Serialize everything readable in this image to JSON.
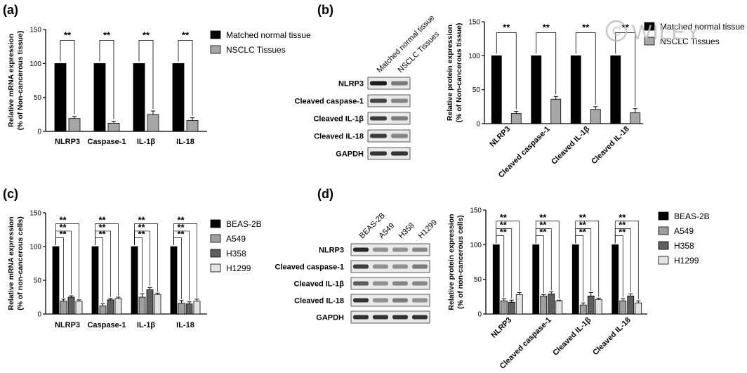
{
  "panels": [
    {
      "id": "a",
      "label": "(a)"
    },
    {
      "id": "b",
      "label": "(b)"
    },
    {
      "id": "c",
      "label": "(c)"
    },
    {
      "id": "d",
      "label": "(d)"
    }
  ],
  "watermark": {
    "symbol": "©",
    "text": "WILEY"
  },
  "sig_label": "**",
  "blots": [
    {
      "panel": "b",
      "lanes": [
        "Matched normal tissue",
        "NSCLC Tissues"
      ],
      "rows": [
        "NLRP3",
        "Cleaved caspase-1",
        "Cleaved IL-1β",
        "Cleaved IL-18",
        "GAPDH"
      ],
      "intensity": [
        [
          1.0,
          0.55
        ],
        [
          0.8,
          0.5
        ],
        [
          0.85,
          0.55
        ],
        [
          0.85,
          0.5
        ],
        [
          0.9,
          0.9
        ]
      ]
    },
    {
      "panel": "d",
      "lanes": [
        "BEAS-2B",
        "A549",
        "H358",
        "H1299"
      ],
      "rows": [
        "NLRP3",
        "Cleaved caspase-1",
        "Cleaved IL-1β",
        "Cleaved IL-18",
        "GAPDH"
      ],
      "intensity": [
        [
          0.95,
          0.45,
          0.45,
          0.5
        ],
        [
          0.85,
          0.45,
          0.45,
          0.55
        ],
        [
          0.7,
          0.45,
          0.5,
          0.5
        ],
        [
          0.9,
          0.45,
          0.55,
          0.45
        ],
        [
          0.9,
          0.9,
          0.9,
          0.9
        ]
      ]
    }
  ],
  "chart_data": [
    {
      "panel": "a",
      "type": "bar",
      "ylabel": "Relative mRNA expression\n(% of Non-cancerous tissue)",
      "ylim": [
        0,
        150
      ],
      "yticks": [
        0,
        50,
        100,
        150
      ],
      "categories": [
        "NLRP3",
        "Caspase-1",
        "IL-1β",
        "IL-18"
      ],
      "rotate_categories": false,
      "legend_position": "right",
      "series": [
        {
          "name": "Matched normal tissue",
          "color": "#000000",
          "values": [
            100,
            100,
            100,
            100
          ],
          "errors": [
            0,
            0,
            0,
            0
          ]
        },
        {
          "name": "NSCLC Tissues",
          "color": "#a6a6a6",
          "values": [
            19,
            12,
            25,
            16
          ],
          "errors": [
            3,
            3,
            5,
            4
          ]
        }
      ],
      "significance": [
        "**",
        "**",
        "**",
        "**"
      ]
    },
    {
      "panel": "b",
      "type": "bar",
      "ylabel": "Relative protein expression\n(% of Non-cancerous tissue)",
      "ylim": [
        0,
        150
      ],
      "yticks": [
        0,
        50,
        100,
        150
      ],
      "categories": [
        "NLRP3",
        "Cleaved caspase-1",
        "Cleaved IL-1β",
        "Cleaved IL-18"
      ],
      "rotate_categories": true,
      "legend_position": "right",
      "series": [
        {
          "name": "Matched normal tissue",
          "color": "#000000",
          "values": [
            100,
            100,
            100,
            100
          ],
          "errors": [
            0,
            0,
            0,
            0
          ]
        },
        {
          "name": "NSCLC Tissues",
          "color": "#a6a6a6",
          "values": [
            15,
            36,
            21,
            16
          ],
          "errors": [
            3,
            4,
            4,
            6
          ]
        }
      ],
      "significance": [
        "**",
        "**",
        "**",
        "**"
      ]
    },
    {
      "panel": "c",
      "type": "bar",
      "ylabel": "Relative mRNA expression\n(% of non-cancerous cells)",
      "ylim": [
        0,
        150
      ],
      "yticks": [
        0,
        50,
        100,
        150
      ],
      "categories": [
        "NLRP3",
        "Caspase-1",
        "IL-1β",
        "IL-18"
      ],
      "rotate_categories": false,
      "legend_position": "right",
      "series": [
        {
          "name": "BEAS-2B",
          "color": "#000000",
          "values": [
            100,
            100,
            100,
            100
          ],
          "errors": [
            0,
            0,
            0,
            0
          ]
        },
        {
          "name": "A549",
          "color": "#9e9e9e",
          "values": [
            19,
            12,
            25,
            16
          ],
          "errors": [
            3,
            3,
            5,
            4
          ]
        },
        {
          "name": "H358",
          "color": "#5e5e5e",
          "values": [
            25,
            21,
            36,
            15
          ],
          "errors": [
            2,
            2,
            3,
            3
          ]
        },
        {
          "name": "H1299",
          "color": "#e3e3e3",
          "values": [
            19,
            23,
            29,
            19
          ],
          "errors": [
            2,
            2,
            2,
            3
          ]
        }
      ],
      "significance": [
        "**",
        "**",
        "**",
        "**"
      ]
    },
    {
      "panel": "d",
      "type": "bar",
      "ylabel": "Relative protein expression\n(% of non-cancerous cells)",
      "ylim": [
        0,
        150
      ],
      "yticks": [
        0,
        50,
        100,
        150
      ],
      "categories": [
        "NLRP3",
        "Cleaved caspase-1",
        "Cleaved IL-1β",
        "Cleaved IL-18"
      ],
      "rotate_categories": true,
      "legend_position": "right",
      "series": [
        {
          "name": "BEAS-2B",
          "color": "#000000",
          "values": [
            100,
            100,
            100,
            100
          ],
          "errors": [
            0,
            0,
            0,
            0
          ]
        },
        {
          "name": "A549",
          "color": "#9e9e9e",
          "values": [
            19,
            26,
            13,
            19
          ],
          "errors": [
            3,
            2,
            3,
            3
          ]
        },
        {
          "name": "H358",
          "color": "#5e5e5e",
          "values": [
            17,
            29,
            26,
            26
          ],
          "errors": [
            3,
            3,
            5,
            3
          ]
        },
        {
          "name": "H1299",
          "color": "#e3e3e3",
          "values": [
            28,
            19,
            21,
            16
          ],
          "errors": [
            3,
            1,
            2,
            3
          ]
        }
      ],
      "significance": [
        "**",
        "**",
        "**",
        "**"
      ]
    }
  ]
}
